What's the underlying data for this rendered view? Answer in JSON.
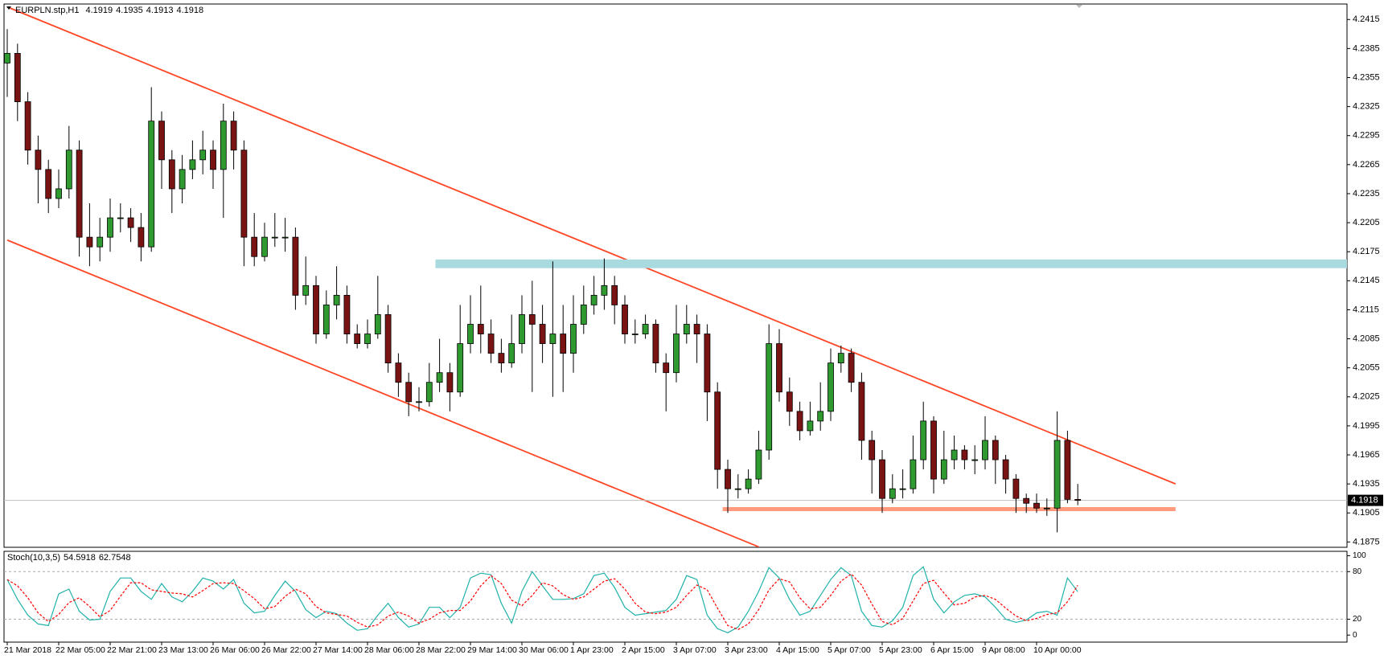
{
  "chart_data": {
    "type": "candlestick",
    "title": "EURPLN.stp,H1",
    "categories": [
      "21 Mar 2018",
      null,
      null,
      null,
      null,
      "22 Mar 05:00",
      null,
      null,
      null,
      null,
      "22 Mar 21:00",
      null,
      null,
      null,
      null,
      "23 Mar 13:00",
      null,
      null,
      null,
      null,
      "26 Mar 06:00",
      null,
      null,
      null,
      null,
      "26 Mar 22:00",
      null,
      null,
      null,
      null,
      "27 Mar 14:00",
      null,
      null,
      null,
      null,
      "28 Mar 06:00",
      null,
      null,
      null,
      null,
      "28 Mar 22:00",
      null,
      null,
      null,
      null,
      "29 Mar 14:00",
      null,
      null,
      null,
      null,
      "30 Mar 06:00",
      null,
      null,
      null,
      null,
      "1 Apr 23:00",
      null,
      null,
      null,
      null,
      "2 Apr 15:00",
      null,
      null,
      null,
      null,
      "3 Apr 07:00",
      null,
      null,
      null,
      null,
      "3 Apr 23:00",
      null,
      null,
      null,
      null,
      "4 Apr 15:00",
      null,
      null,
      null,
      null,
      "5 Apr 07:00",
      null,
      null,
      null,
      null,
      "5 Apr 23:00",
      null,
      null,
      null,
      null,
      "6 Apr 15:00",
      null,
      null,
      null,
      null,
      "9 Apr 08:00",
      null,
      null,
      null,
      null,
      "10 Apr 00:00",
      null,
      null,
      null,
      null
    ],
    "open": [
      4.237,
      4.238,
      4.233,
      4.228,
      4.226,
      4.223,
      4.224,
      4.228,
      4.219,
      4.218,
      4.219,
      4.221,
      4.221,
      4.22,
      4.218,
      4.231,
      4.227,
      4.224,
      4.226,
      4.227,
      4.228,
      4.226,
      4.231,
      4.228,
      4.219,
      4.217,
      4.219,
      4.219,
      4.219,
      4.213,
      4.214,
      4.209,
      4.212,
      4.213,
      4.209,
      4.208,
      4.209,
      4.211,
      4.206,
      4.204,
      4.202,
      4.202,
      4.204,
      4.205,
      4.203,
      4.208,
      4.21,
      4.209,
      4.207,
      4.206,
      4.208,
      4.211,
      4.21,
      4.208,
      4.209,
      4.207,
      4.21,
      4.212,
      4.213,
      4.214,
      4.212,
      4.209,
      4.209,
      4.21,
      4.206,
      4.205,
      4.209,
      4.21,
      4.209,
      4.203,
      4.195,
      4.193,
      4.193,
      4.194,
      4.197,
      4.208,
      4.203,
      4.201,
      4.199,
      4.2,
      4.201,
      4.206,
      4.207,
      4.204,
      4.198,
      4.196,
      4.192,
      4.193,
      4.193,
      4.196,
      4.2,
      4.194,
      4.196,
      4.197,
      4.196,
      4.196,
      4.198,
      4.196,
      4.194,
      4.192,
      4.1915,
      4.191,
      4.191,
      4.198,
      4.1919
    ],
    "high": [
      4.2405,
      4.239,
      4.234,
      4.2295,
      4.227,
      4.226,
      4.2305,
      4.229,
      4.2225,
      4.221,
      4.223,
      4.2225,
      4.222,
      4.2215,
      4.2345,
      4.232,
      4.228,
      4.2275,
      4.229,
      4.23,
      4.229,
      4.2328,
      4.232,
      4.229,
      4.2215,
      4.2205,
      4.2215,
      4.221,
      4.22,
      4.217,
      4.215,
      4.2135,
      4.216,
      4.214,
      4.21,
      4.2105,
      4.215,
      4.212,
      4.207,
      4.205,
      4.2035,
      4.206,
      4.2085,
      4.206,
      4.212,
      4.213,
      4.214,
      4.2105,
      4.2085,
      4.211,
      4.213,
      4.2145,
      4.212,
      4.2165,
      4.212,
      4.213,
      4.214,
      4.215,
      4.2168,
      4.215,
      4.213,
      4.2105,
      4.211,
      4.2105,
      4.207,
      4.212,
      4.212,
      4.211,
      4.21,
      4.204,
      4.196,
      4.1945,
      4.195,
      4.199,
      4.21,
      4.2095,
      4.2045,
      4.202,
      4.202,
      4.204,
      4.2075,
      4.2078,
      4.2075,
      4.205,
      4.199,
      4.197,
      4.1945,
      4.195,
      4.1985,
      4.202,
      4.2005,
      4.199,
      4.1985,
      4.1975,
      4.1975,
      4.2005,
      4.1985,
      4.1965,
      4.1945,
      4.1925,
      4.1925,
      4.192,
      4.201,
      4.199,
      4.1935
    ],
    "low": [
      4.2335,
      4.231,
      4.2265,
      4.2225,
      4.2215,
      4.222,
      4.223,
      4.217,
      4.216,
      4.2165,
      4.2175,
      4.2195,
      4.2185,
      4.2165,
      4.2175,
      4.224,
      4.2215,
      4.2225,
      4.225,
      4.2255,
      4.224,
      4.221,
      4.226,
      4.216,
      4.216,
      4.2165,
      4.218,
      4.2175,
      4.2115,
      4.212,
      4.208,
      4.2085,
      4.2105,
      4.208,
      4.2075,
      4.2075,
      4.2085,
      4.205,
      4.2025,
      4.2005,
      4.201,
      4.2015,
      4.203,
      4.201,
      4.2025,
      4.207,
      4.207,
      4.206,
      4.205,
      4.2055,
      4.207,
      4.203,
      4.206,
      4.2025,
      4.203,
      4.205,
      4.209,
      4.211,
      4.2115,
      4.21,
      4.208,
      4.208,
      4.2085,
      4.205,
      4.201,
      4.204,
      4.208,
      4.206,
      4.2,
      4.193,
      4.1905,
      4.192,
      4.1925,
      4.1935,
      4.196,
      4.202,
      4.1995,
      4.198,
      4.1985,
      4.199,
      4.2,
      4.205,
      4.203,
      4.196,
      4.1925,
      4.1905,
      4.1915,
      4.192,
      4.1925,
      4.195,
      4.1925,
      4.1935,
      4.195,
      4.195,
      4.1945,
      4.195,
      4.1935,
      4.1925,
      4.1905,
      4.1905,
      4.1905,
      4.1902,
      4.1885,
      4.1915,
      4.1913
    ],
    "close": [
      4.238,
      4.233,
      4.228,
      4.226,
      4.223,
      4.224,
      4.228,
      4.219,
      4.218,
      4.219,
      4.221,
      4.221,
      4.22,
      4.218,
      4.231,
      4.227,
      4.224,
      4.226,
      4.227,
      4.228,
      4.226,
      4.231,
      4.228,
      4.219,
      4.217,
      4.219,
      4.219,
      4.219,
      4.213,
      4.214,
      4.209,
      4.212,
      4.213,
      4.209,
      4.208,
      4.209,
      4.211,
      4.206,
      4.204,
      4.202,
      4.202,
      4.204,
      4.205,
      4.203,
      4.208,
      4.21,
      4.209,
      4.207,
      4.206,
      4.208,
      4.211,
      4.21,
      4.208,
      4.209,
      4.207,
      4.21,
      4.212,
      4.213,
      4.214,
      4.212,
      4.209,
      4.209,
      4.21,
      4.206,
      4.205,
      4.209,
      4.21,
      4.209,
      4.203,
      4.195,
      4.193,
      4.193,
      4.194,
      4.197,
      4.208,
      4.203,
      4.201,
      4.199,
      4.2,
      4.201,
      4.206,
      4.207,
      4.204,
      4.198,
      4.196,
      4.192,
      4.193,
      4.193,
      4.196,
      4.2,
      4.194,
      4.196,
      4.197,
      4.196,
      4.196,
      4.198,
      4.196,
      4.194,
      4.192,
      4.1915,
      4.191,
      4.191,
      4.198,
      4.1919,
      4.1918
    ],
    "up_color": "#2f9a2f",
    "down_color": "#7a1414",
    "ylim": [
      4.18695,
      4.2431
    ],
    "yticks": [
      4.2415,
      4.2385,
      4.2355,
      4.2325,
      4.2295,
      4.2265,
      4.2235,
      4.2205,
      4.2175,
      4.2145,
      4.2115,
      4.2085,
      4.2055,
      4.2025,
      4.1995,
      4.1965,
      4.1935,
      4.1905,
      4.1875
    ],
    "annotations": [
      {
        "type": "trendline",
        "x": [
          0,
          113.5
        ],
        "y": [
          4.2428,
          4.1935
        ],
        "color": "#ff4626"
      },
      {
        "type": "trendline",
        "x": [
          0,
          73.0
        ],
        "y": [
          4.2187,
          4.187
        ],
        "color": "#ff4626"
      },
      {
        "type": "band",
        "x": [
          41.6,
          130.2
        ],
        "y": [
          4.2158,
          4.2167
        ],
        "color": "#a8dadf"
      },
      {
        "type": "hline",
        "x": [
          69.5,
          113.5
        ],
        "y": [
          4.1909,
          4.1909
        ],
        "color": "#ff9a7c"
      }
    ],
    "indicator": {
      "type": "line",
      "name": "Stoch(10,3,5)",
      "ylim": [
        -8.9,
        105.6
      ],
      "yticks": [
        100,
        80,
        20,
        0
      ],
      "levels": [
        20,
        80
      ],
      "series": [
        {
          "color": "#20b2aa",
          "values": [
            70,
            45,
            25,
            14,
            12,
            52,
            58,
            30,
            19,
            20,
            55,
            72,
            72,
            55,
            45,
            65,
            48,
            42,
            55,
            72,
            68,
            58,
            70,
            40,
            28,
            30,
            50,
            68,
            55,
            32,
            22,
            30,
            27,
            15,
            6,
            8,
            25,
            40,
            22,
            10,
            14,
            35,
            35,
            22,
            35,
            72,
            78,
            76,
            40,
            15,
            55,
            80,
            62,
            45,
            45,
            46,
            52,
            75,
            78,
            60,
            35,
            25,
            27,
            29,
            31,
            45,
            75,
            70,
            25,
            8,
            3,
            10,
            30,
            55,
            85,
            72,
            45,
            25,
            30,
            50,
            70,
            85,
            75,
            30,
            12,
            10,
            18,
            35,
            75,
            86,
            45,
            28,
            42,
            50,
            52,
            48,
            35,
            20,
            16,
            19,
            28,
            30,
            25,
            72,
            54.5918
          ]
        },
        {
          "color": "#ff0000",
          "dashed": true,
          "values": [
            70,
            62,
            47,
            28,
            17,
            26,
            41,
            47,
            36,
            23,
            31,
            49,
            66,
            66,
            57,
            55,
            53,
            52,
            48,
            56,
            65,
            66,
            65,
            56,
            46,
            33,
            36,
            49,
            58,
            52,
            36,
            28,
            26,
            24,
            16,
            10,
            13,
            24,
            29,
            24,
            15,
            20,
            28,
            31,
            31,
            43,
            62,
            75,
            65,
            44,
            37,
            50,
            66,
            62,
            51,
            45,
            48,
            58,
            68,
            71,
            58,
            40,
            29,
            27,
            29,
            35,
            50,
            63,
            57,
            34,
            12,
            7,
            14,
            32,
            57,
            71,
            67,
            47,
            33,
            35,
            50,
            68,
            77,
            63,
            39,
            17,
            13,
            21,
            43,
            65,
            69,
            53,
            38,
            40,
            48,
            50,
            45,
            34,
            24,
            18,
            21,
            26,
            28,
            42,
            62.7548
          ]
        }
      ]
    }
  }
}
